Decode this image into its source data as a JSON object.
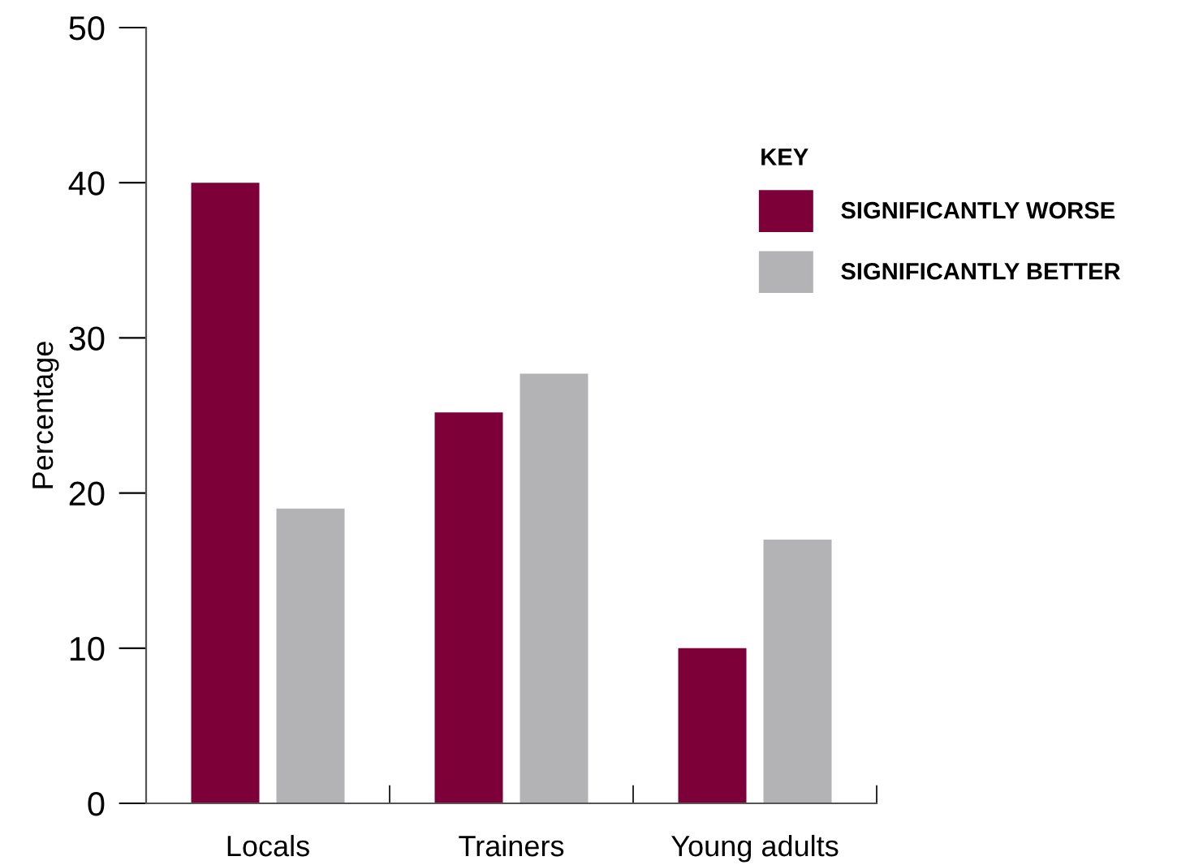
{
  "chart_data": {
    "type": "bar",
    "ylabel": "Percentage",
    "legend_title": "KEY",
    "categories": [
      "Locals",
      "Trainers",
      "Young adults"
    ],
    "series": [
      {
        "name": "SIGNIFICANTLY WORSE",
        "color": "#7d0038",
        "values": [
          40,
          25.2,
          10
        ]
      },
      {
        "name": "SIGNIFICANTLY BETTER",
        "color": "#b3b3b5",
        "values": [
          19,
          27.7,
          17
        ]
      }
    ],
    "ylim": [
      0,
      50
    ],
    "yticks": [
      0,
      10,
      20,
      30,
      40,
      50
    ],
    "grid": false,
    "legend": "top right"
  }
}
